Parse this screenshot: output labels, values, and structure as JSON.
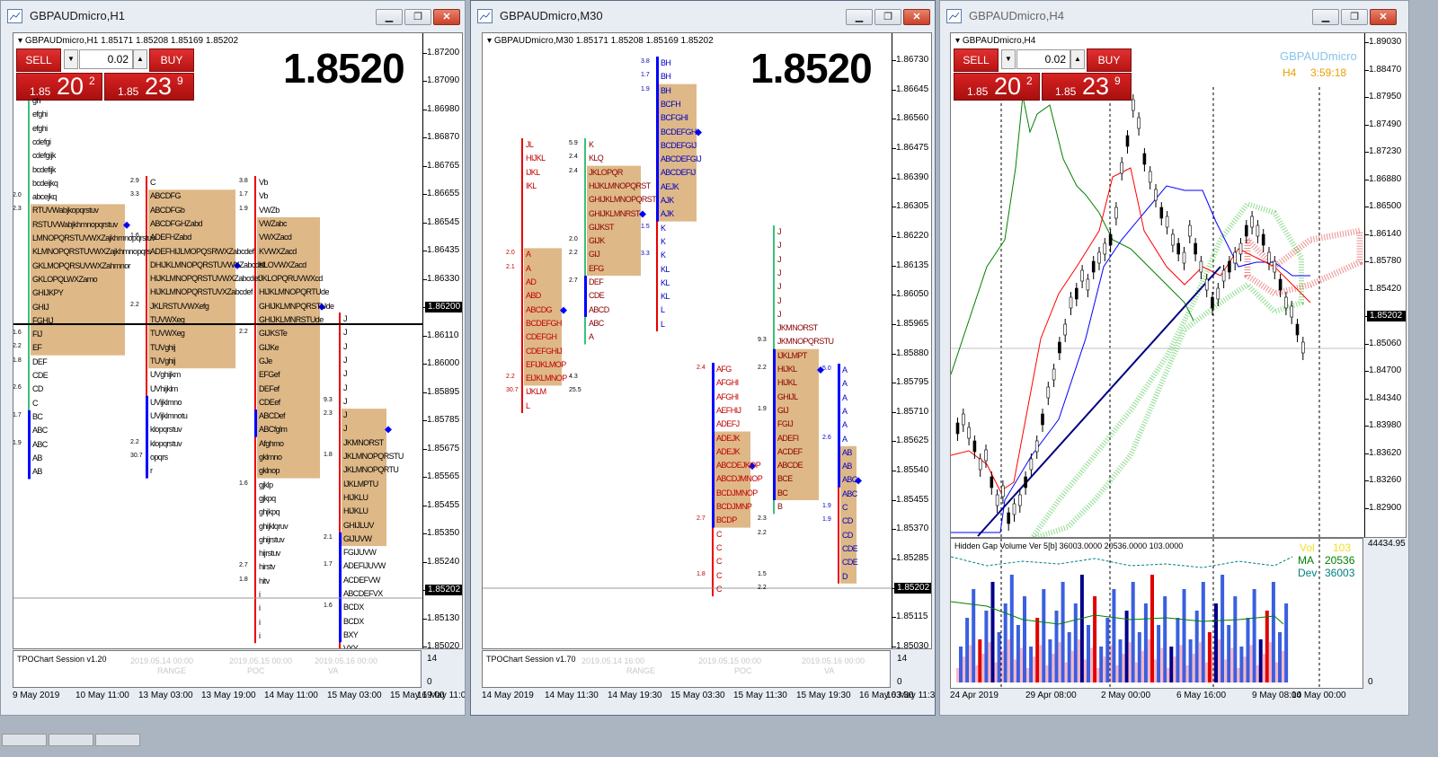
{
  "windows": [
    {
      "title": "GBPAUDmicro,H1",
      "header": "GBPAUDmicro,H1  1.85171 1.85208 1.85169 1.85202",
      "big_price": "1.8520",
      "trade_panel": {
        "sell": "SELL",
        "buy": "BUY",
        "lot": "0.02",
        "bid_small": "1.85",
        "bid_big": "20",
        "bid_pip": "2",
        "ask_small": "1.85",
        "ask_big": "23",
        "ask_pip": "9"
      },
      "price_ticks": [
        "1.87200",
        "1.87090",
        "1.86980",
        "1.86870",
        "1.86765",
        "1.86655",
        "1.86545",
        "1.86435",
        "1.86330",
        "1.86200",
        "1.86110",
        "1.86000",
        "1.85895",
        "1.85785",
        "1.85675",
        "1.85565",
        "1.85455",
        "1.85350",
        "1.85240",
        "1.85202",
        "1.85130",
        "1.85020"
      ],
      "marked_prices": [
        "1.86200",
        "1.85202"
      ],
      "sub_label": "TPOChart Session v1.20",
      "sub_scale": [
        "14",
        "0"
      ],
      "dates": [
        "9 May 2019",
        "10 May 11:00",
        "13 May 03:00",
        "13 May 19:00",
        "14 May 11:00",
        "15 May 03:00",
        "15 May 19:00",
        "16 May 11:00"
      ],
      "profiles": [
        {
          "rows": [
            "gh",
            "efghi",
            "efghi",
            "cdefgi",
            "cdefgijk",
            "bcdefijk",
            "bcdeijkq",
            "abcejkq",
            "RTUVWabjkopqrstuv",
            "RSTUVWabjkhmnopqrstuv",
            "LMNOPQRSTUVWXZajkhmnopqrstuv",
            "KLMNOPQRSTUVWXZajkhmnopqrs",
            "GKLMOPQRSUVWXZahmnor",
            "GKLOPQLWXZamo",
            "GHIJKPY",
            "GHIJ",
            "FGHIJ",
            "FIJ",
            "EF",
            "DEF",
            "CDE",
            "CD",
            "C",
            "BC",
            "ABC",
            "ABC",
            "AB",
            "AB"
          ],
          "nums": [
            "2.0",
            "2.3",
            "1.6",
            "2.2",
            "1.8",
            "2.6",
            "1.7",
            "1.9"
          ]
        },
        {
          "rows": [
            "C",
            "ABCDFG",
            "ABCDFGb",
            "ABCDFGHZabd",
            "ADEFHZabd",
            "ADEFHIJLMOPQSRWXZabcdef",
            "DHIJKLMNOPQRSTUVWXZabcdef",
            "HIJKLMNOPQRSTUVWXZabcdef",
            "HIJKLMNOPQRSTUVXZabcdef",
            "JKLRSTUVWXefg",
            "TUVWXeg",
            "TUVWXeg",
            "TUVghij",
            "TUVghij",
            "UVghijkm",
            "UVhijklm",
            "UVijklmno",
            "UVijklmnotu",
            "klopqrstuv",
            "klopqrstuv",
            "opqrs",
            "r"
          ],
          "nums": [
            "2.9",
            "3.3",
            "1.6",
            "2.2",
            "2.2",
            "30.7"
          ]
        },
        {
          "rows": [
            "Vb",
            "Vb",
            "VWZb",
            "VWZabc",
            "VWXZacd",
            "KVWXZacd",
            "KLOVWXZacd",
            "JKLOPQRUVWXcd",
            "HIJKLMNOPQRTUde",
            "GHIJKLMNPQRSTUde",
            "GHIJKLMNRSTUde",
            "GIJKSTe",
            "GIJKe",
            "GJe",
            "EFGef",
            "DEFef",
            "CDEef",
            "ABCDef",
            "ABCfglm",
            "Afghmo",
            "gklmno",
            "gklnop",
            "gjklp",
            "gjkpq",
            "ghjkpq",
            "ghijklqruv",
            "ghijrstuv",
            "hijrstuv",
            "hirstv",
            "hitv",
            "i",
            "i",
            "i",
            "i"
          ],
          "nums": [
            "3.8",
            "1.7",
            "1.9",
            "2.2",
            "1.6",
            "2.7",
            "1.8"
          ]
        },
        {
          "rows": [
            "J",
            "J",
            "J",
            "J",
            "J",
            "J",
            "J",
            "J",
            "J",
            "JKMNORST",
            "JKLMNOPQRSTU",
            "JKLMNOPQRTU",
            "IJKLMPTU",
            "HIJKLU",
            "HIJKLU",
            "GHIJLUV",
            "GIJUVW",
            "FGIJUVW",
            "ADEFIJUVW",
            "ACDEFVW",
            "ABCDEFVX",
            "BCDX",
            "BCDX",
            "BXY",
            "VXY",
            "X"
          ],
          "nums": [
            "9.3",
            "2.3",
            "1.8",
            "2.1",
            "1.7",
            "1.6"
          ]
        }
      ],
      "ghost_text": [
        "2019.05.14 00:00",
        "2019.05.15 00:00",
        "2019.05.16 00:00",
        "RANGE",
        "POC",
        "VA"
      ]
    },
    {
      "title": "GBPAUDmicro,M30",
      "header": "GBPAUDmicro,M30  1.85171 1.85208 1.85169 1.85202",
      "big_price": "1.8520",
      "price_ticks": [
        "1.86730",
        "1.86645",
        "1.86560",
        "1.86475",
        "1.86390",
        "1.86305",
        "1.86220",
        "1.86135",
        "1.86050",
        "1.85965",
        "1.85880",
        "1.85795",
        "1.85710",
        "1.85625",
        "1.85540",
        "1.85455",
        "1.85370",
        "1.85285",
        "1.85202",
        "1.85115",
        "1.85030"
      ],
      "marked_prices": [
        "1.85202"
      ],
      "sub_label": "TPOChart Session v1.70",
      "sub_scale": [
        "14",
        "0"
      ],
      "dates": [
        "14 May 2019",
        "14 May 11:30",
        "14 May 19:30",
        "15 May 03:30",
        "15 May 11:30",
        "15 May 19:30",
        "16 May 03:30",
        "16 May 11:30"
      ],
      "profiles": [
        {
          "rows": [
            "JL",
            "HIJKL",
            "IJKL",
            "IKL",
            "",
            "",
            "",
            "",
            "A",
            "A",
            "AD",
            "ABD",
            "ABCDG",
            "BCDEFGH",
            "CDEFGH",
            "CDEFGHIJ",
            "EFIJKLMOP",
            "EIJKLMNOP",
            "IJKLM",
            "L"
          ],
          "nums": [
            "2.0",
            "2.1",
            "2.2",
            "30.7"
          ]
        },
        {
          "rows": [
            "K",
            "KLQ",
            "JKLOPQR",
            "HIJKLMNOPQRST",
            "GHIJKLMNOPQRST",
            "GHIJKLMNRST",
            "GIJKST",
            "GIJK",
            "GIJ",
            "EFG",
            "DEF",
            "CDE",
            "ABCD",
            "ABC",
            "A"
          ],
          "nums": [
            "5.9",
            "2.4",
            "2.4",
            "2.0",
            "2.2",
            "2.7",
            "4.3",
            "25.5"
          ]
        },
        {
          "rows": [
            "BH",
            "BH",
            "BH",
            "BCFH",
            "BCFGHI",
            "BCDEFGHI",
            "BCDEFGIJ",
            "ABCDEFGIJ",
            "ABCDEFIJ",
            "AEJK",
            "AJK",
            "AJK",
            "K",
            "K",
            "K",
            "KL",
            "KL",
            "KL",
            "L",
            "L"
          ],
          "nums": [
            "3.8",
            "1.7",
            "1.9",
            "1.5",
            "3.3"
          ]
        },
        {
          "rows": [
            "AFG",
            "AFGHI",
            "AFGHI",
            "AEFHIJ",
            "ADEFJ",
            "ADEJK",
            "ADEJK",
            "ABCDEJKOP",
            "ABCDJMNOP",
            "BCDJMNOP",
            "BCDJMNP",
            "BCDP",
            "C",
            "C",
            "C",
            "C",
            "C"
          ],
          "nums": [
            "2.4",
            "2.7",
            "1.8"
          ]
        },
        {
          "rows": [
            "J",
            "J",
            "J",
            "J",
            "J",
            "J",
            "J",
            "JKMNORST",
            "JKMNOPQRSTU",
            "IJKLMPT",
            "HIJKL",
            "HIJKL",
            "GHIJL",
            "GIJ",
            "FGIJ",
            "ADEFI",
            "ACDEF",
            "ABCDE",
            "BCE",
            "BC",
            "B"
          ],
          "nums": [
            "9.3",
            "2.2",
            "1.9",
            "2.3",
            "2.2",
            "1.5",
            "2.2"
          ]
        },
        {
          "rows": [
            "A",
            "A",
            "A",
            "A",
            "A",
            "A",
            "AB",
            "AB",
            "ABC",
            "ABC",
            "C",
            "CD",
            "CD",
            "CDE",
            "CDE",
            "D"
          ],
          "nums": [
            "5.0",
            "2.6",
            "1.9",
            "1.9"
          ]
        }
      ],
      "ghost_text": [
        "2019.05.14 16:00",
        "2019.05.15 00:00",
        "2019.05.16 00:00",
        "RANGE",
        "POC",
        "VA"
      ]
    },
    {
      "title": "GBPAUDmicro,H4",
      "header": "GBPAUDmicro,H4",
      "symbol_watermark": "GBPAUDmicro",
      "timeframe": "H4",
      "countdown": "3:59:18",
      "trade_panel": {
        "sell": "SELL",
        "buy": "BUY",
        "lot": "0.02",
        "bid_small": "1.85",
        "bid_big": "20",
        "bid_pip": "2",
        "ask_small": "1.85",
        "ask_big": "23",
        "ask_pip": "9"
      },
      "price_ticks": [
        "1.89030",
        "1.88470",
        "1.87950",
        "1.87490",
        "1.87230",
        "1.86880",
        "1.86500",
        "1.86140",
        "1.85780",
        "1.85420",
        "1.85202",
        "1.85060",
        "1.84700",
        "1.84340",
        "1.83980",
        "1.83620",
        "1.83260",
        "1.82900"
      ],
      "marked_prices": [
        "1.85202"
      ],
      "sub_label": "Hidden Gap Volume Ver 5[b] 36003.0000 20536.0000 103.0000",
      "sub_scale": [
        "44434.95",
        "0"
      ],
      "vol_legend": {
        "vol_label": "Vol",
        "vol_value": "103",
        "ma_label": "MA",
        "ma_value": "20536",
        "dev_label": "Dev",
        "dev_value": "36003"
      },
      "dates": [
        "24 Apr 2019",
        "29 Apr 08:00",
        "2 May 00:00",
        "6 May 16:00",
        "9 May 08:00",
        "14 May 00:00"
      ]
    }
  ],
  "colors": {
    "tpo_box": "#deb887",
    "red_line": "#e80000",
    "blue_bar": "#0000ff",
    "green_bar": "#3cc078",
    "up_line": "#008000",
    "sell_red": "#d42020"
  }
}
